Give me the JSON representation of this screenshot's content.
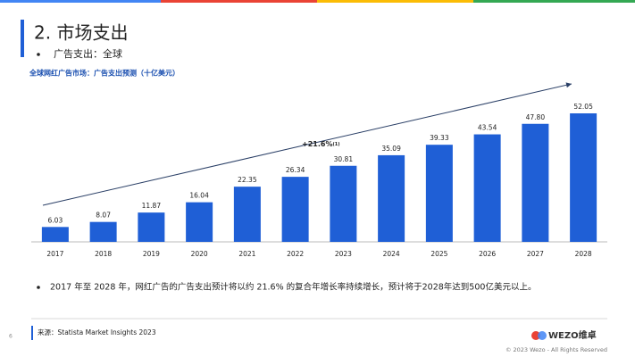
{
  "header": {
    "title": "2. 市场支出",
    "bullet": "广告支出：全球"
  },
  "chart_data": {
    "type": "bar",
    "title": "全球网红广告市场：广告支出预测（十亿美元）",
    "categories": [
      "2017",
      "2018",
      "2019",
      "2020",
      "2021",
      "2022",
      "2023",
      "2024",
      "2025",
      "2026",
      "2027",
      "2028"
    ],
    "values": [
      6.03,
      8.07,
      11.87,
      16.04,
      22.35,
      26.34,
      30.81,
      35.09,
      39.33,
      43.54,
      47.8,
      52.05
    ],
    "value_labels": [
      "6.03",
      "8.07",
      "11.87",
      "16.04",
      "22.35",
      "26.34",
      "30.81",
      "35.09",
      "39.33",
      "43.54",
      "47.80",
      "52.05"
    ],
    "color": "#1f5fd6",
    "annotation": "+21.6%",
    "annotation_note": "(1)"
  },
  "note": "2017 年至 2028 年，网红广告的广告支出预计将以约 21.6% 的复合年增长率持续增长，预计将于2028年达到500亿美元以上。",
  "footer": {
    "page": "6",
    "source": "来源：Statista Market Insights 2023",
    "logo": "WEZO维卓",
    "copyright": "© 2023 Wezo - All Rights Reserved"
  }
}
